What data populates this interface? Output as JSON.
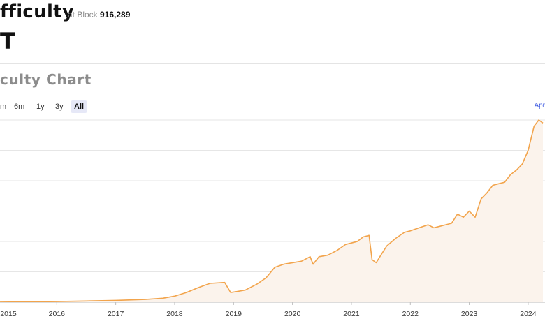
{
  "header": {
    "title": "fficulty",
    "block_prefix": "at Block",
    "block_number": "916,289",
    "value": "T"
  },
  "chart_section": {
    "title": "culty Chart",
    "ranges": [
      "m",
      "6m",
      "1y",
      "3y",
      "All"
    ],
    "active_range": "All",
    "right_link": "Apr"
  },
  "colors": {
    "line": "#f2a44c",
    "area": "#fbf3ec",
    "grid": "#e6e6e6",
    "active_button_bg": "#e6e8f7",
    "link": "#3a57e0"
  },
  "chart_data": {
    "type": "area",
    "title": "",
    "xlabel": "",
    "ylabel": "",
    "x_ticks": [
      "2015",
      "2016",
      "2017",
      "2018",
      "2019",
      "2020",
      "2021",
      "2022",
      "2023",
      "2024"
    ],
    "xlim": [
      2015.0,
      2024.25
    ],
    "ylim": [
      0,
      6
    ],
    "grid": true,
    "legend": "none",
    "series": [
      {
        "x": [
          2015.0,
          2015.5,
          2016.0,
          2016.5,
          2017.0,
          2017.5,
          2017.8,
          2018.0,
          2018.2,
          2018.4,
          2018.6,
          2018.85,
          2018.95,
          2019.05,
          2019.2,
          2019.4,
          2019.55,
          2019.7,
          2019.85,
          2020.0,
          2020.15,
          2020.3,
          2020.35,
          2020.45,
          2020.6,
          2020.75,
          2020.9,
          2021.0,
          2021.1,
          2021.2,
          2021.3,
          2021.35,
          2021.42,
          2021.5,
          2021.6,
          2021.75,
          2021.9,
          2022.0,
          2022.15,
          2022.3,
          2022.4,
          2022.5,
          2022.6,
          2022.7,
          2022.8,
          2022.9,
          2023.0,
          2023.1,
          2023.2,
          2023.3,
          2023.4,
          2023.5,
          2023.6,
          2023.7,
          2023.8,
          2023.9,
          2024.0,
          2024.1,
          2024.18,
          2024.25
        ],
        "y": [
          0.0,
          0.01,
          0.02,
          0.04,
          0.06,
          0.09,
          0.13,
          0.2,
          0.32,
          0.48,
          0.62,
          0.65,
          0.32,
          0.35,
          0.4,
          0.6,
          0.8,
          1.15,
          1.25,
          1.3,
          1.35,
          1.5,
          1.25,
          1.5,
          1.55,
          1.7,
          1.9,
          1.95,
          2.0,
          2.15,
          2.2,
          1.4,
          1.3,
          1.55,
          1.85,
          2.1,
          2.3,
          2.35,
          2.45,
          2.55,
          2.45,
          2.5,
          2.55,
          2.6,
          2.9,
          2.8,
          3.0,
          2.8,
          3.4,
          3.6,
          3.85,
          3.9,
          3.95,
          4.2,
          4.35,
          4.55,
          5.0,
          5.8,
          6.0,
          5.9
        ]
      }
    ]
  }
}
